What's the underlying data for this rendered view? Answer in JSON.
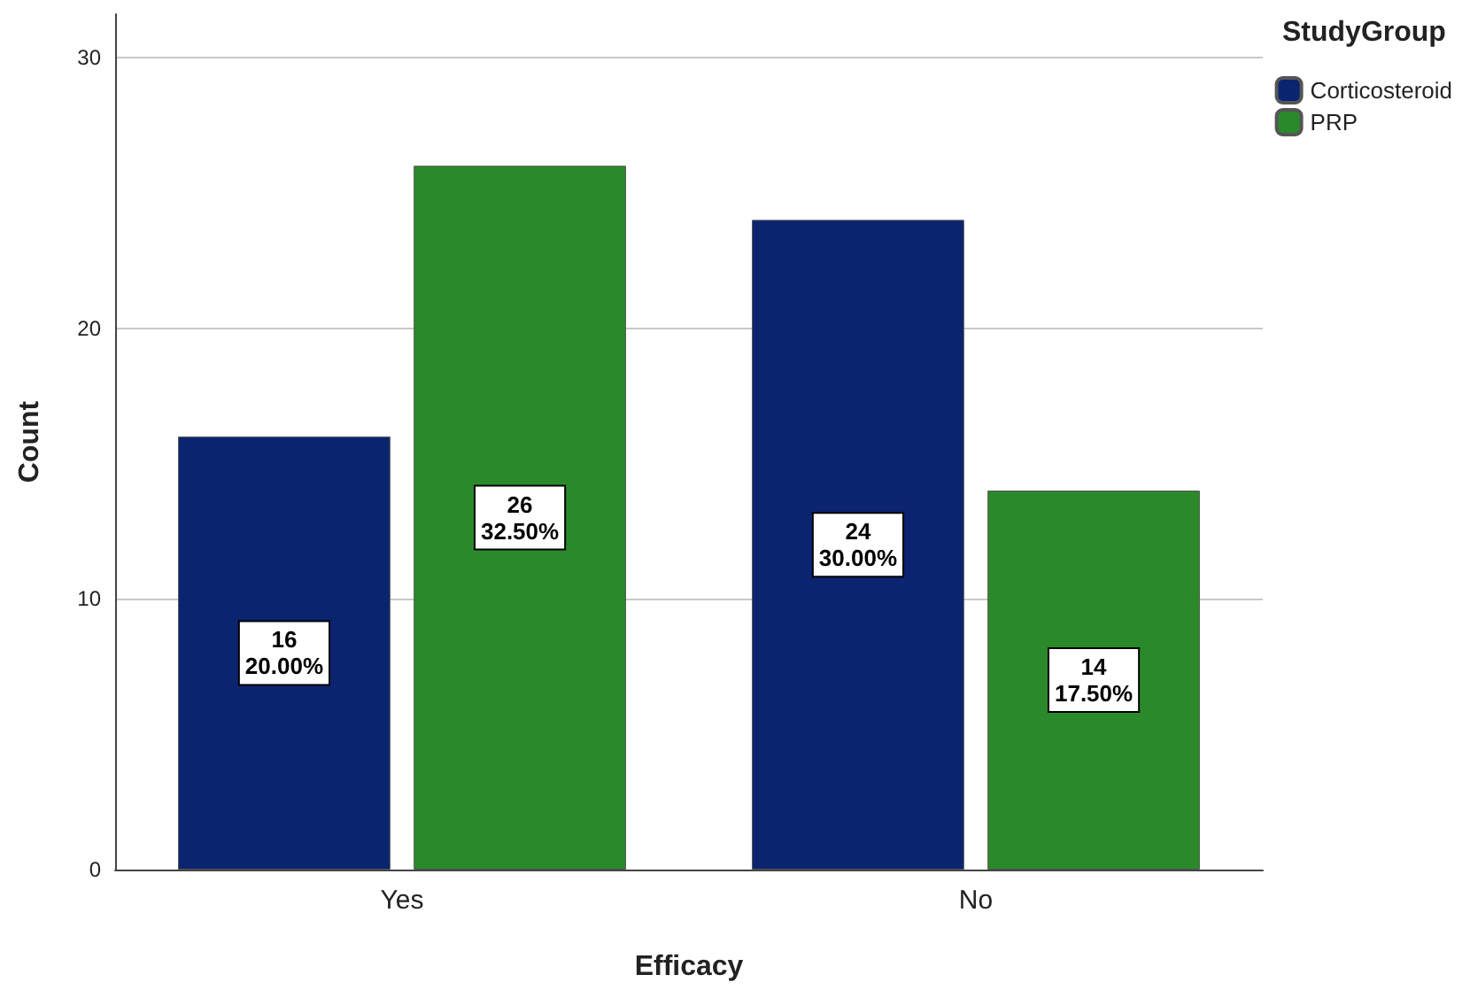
{
  "chart_data": {
    "type": "bar",
    "xlabel": "Efficacy",
    "ylabel": "Count",
    "legend_title": "StudyGroup",
    "categories": [
      "Yes",
      "No"
    ],
    "series": [
      {
        "name": "Corticosteroid",
        "color": "#0b2470",
        "values": [
          16,
          24
        ],
        "value_labels": [
          "16\n20.00%",
          "24\n30.00%"
        ]
      },
      {
        "name": "PRP",
        "color": "#2a8a2a",
        "values": [
          26,
          14
        ],
        "value_labels": [
          "26\n32.50%",
          "14\n17.50%"
        ]
      }
    ],
    "ylim": [
      0,
      31.6
    ],
    "yticks": [
      0,
      10,
      20,
      30
    ],
    "grid": "y",
    "legend": "top right"
  }
}
